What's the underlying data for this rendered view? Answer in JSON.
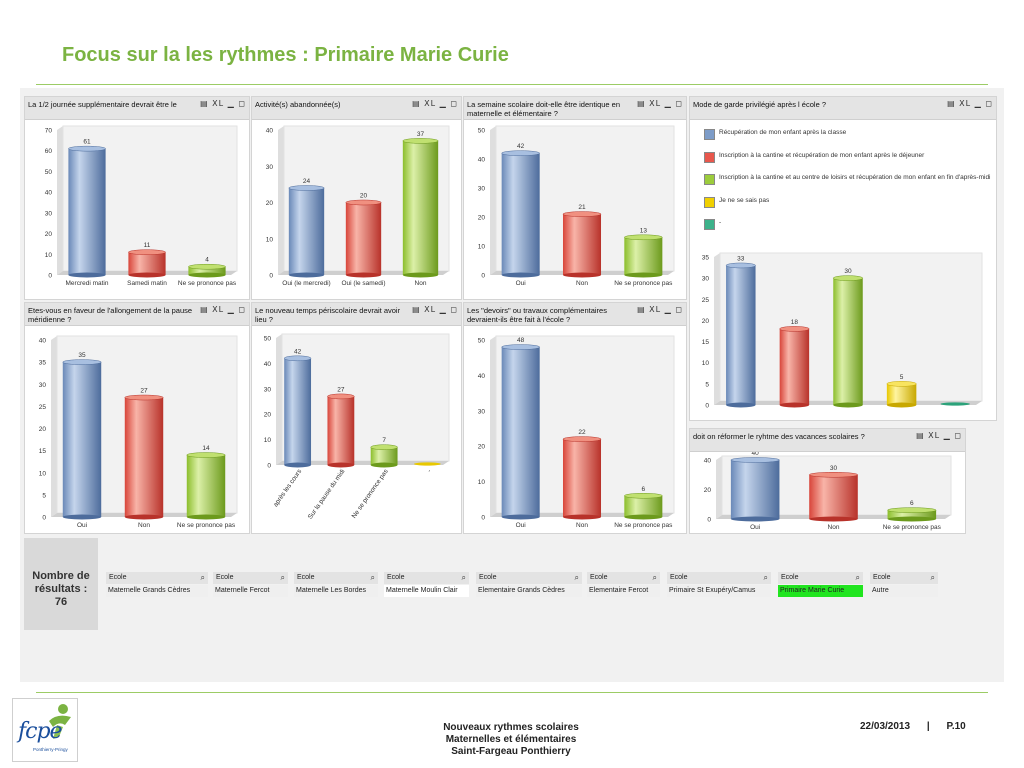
{
  "slide": {
    "title": "Focus sur la les rythmes : Primaire Marie Curie",
    "panel_icons": "▤ XL ▁ ◻",
    "result_count": "Nombre de résultats : 76",
    "listbox_search_icon": "magnifier-icon",
    "listboxes": [
      {
        "header": "Ecole",
        "value": "Maternelle Grands Cèdres"
      },
      {
        "header": "Ecole",
        "value": "Maternelle Fercot"
      },
      {
        "header": "Ecole",
        "value": "Maternelle Les Bordes"
      },
      {
        "header": "Ecole",
        "value": "Maternelle Moulin Clair"
      },
      {
        "header": "Ecole",
        "value": "Elementaire Grands Cèdres"
      },
      {
        "header": "Ecole",
        "value": "Elementaire Fercot"
      },
      {
        "header": "Ecole",
        "value": "Primaire St Exupéry/Camus"
      },
      {
        "header": "Ecole",
        "value": "Primaire Marie Curie",
        "selected": true
      },
      {
        "header": "Ecole",
        "value": "Autre"
      }
    ],
    "logo": {
      "name": "fcpe",
      "subtitle": "Ponthierry-Pringy"
    },
    "footer": {
      "line1": "Nouveaux rythmes scolaires",
      "line2": "Maternelles et élémentaires",
      "line3": "Saint-Fargeau Ponthierry",
      "date": "22/03/2013",
      "separator": "|",
      "page": "P.10"
    },
    "colors": {
      "blue": "#7d9cc8",
      "red": "#e8574c",
      "green": "#9ccc3c",
      "yellow": "#f0d000",
      "teal": "#3cb28a",
      "selected_green": "#21e51f",
      "title_green": "#7bb342"
    }
  },
  "chart_data": [
    {
      "type": "bar",
      "title": "La 1/2 journée supplémentaire devrait être le",
      "categories": [
        "Mercredi matin",
        "Samedi matin",
        "Ne se prononce pas"
      ],
      "values": [
        61,
        11,
        4
      ],
      "ylim": [
        0,
        70
      ],
      "yticks": [
        0,
        10,
        20,
        30,
        40,
        50,
        60,
        70
      ],
      "colors": [
        "blue",
        "red",
        "green"
      ]
    },
    {
      "type": "bar",
      "title": "Activité(s) abandonnée(s)",
      "categories": [
        "Oui (le mercredi)",
        "Oui (le samedi)",
        "Non"
      ],
      "values": [
        24,
        20,
        37
      ],
      "ylim": [
        0,
        40
      ],
      "yticks": [
        0,
        10,
        20,
        30,
        40
      ],
      "colors": [
        "blue",
        "red",
        "green"
      ]
    },
    {
      "type": "bar",
      "title": "La semaine scolaire doit-elle être identique en maternelle et élémentaire ?",
      "categories": [
        "Oui",
        "Non",
        "Ne se prononce pas"
      ],
      "values": [
        42,
        21,
        13
      ],
      "ylim": [
        0,
        50
      ],
      "yticks": [
        0,
        10,
        20,
        30,
        40,
        50
      ],
      "colors": [
        "blue",
        "red",
        "green"
      ]
    },
    {
      "type": "bar",
      "title": "Mode de garde privilégié après l école ?",
      "categories": [
        "Récupération de mon enfant après la classe",
        "Inscription à la cantine et récupération de mon enfant après le déjeuner",
        "Inscription à la cantine et au centre de loisirs et récupération de mon enfant en fin d'après-midi",
        "Je ne se sais pas",
        "-"
      ],
      "values": [
        33,
        18,
        30,
        5,
        0
      ],
      "ylim": [
        0,
        35
      ],
      "yticks": [
        0,
        5,
        10,
        15,
        20,
        25,
        30,
        35
      ],
      "colors": [
        "blue",
        "red",
        "green",
        "yellow",
        "teal"
      ],
      "legend": "top"
    },
    {
      "type": "bar",
      "title": "Etes-vous en faveur de l'allongement de la pause méridienne ?",
      "categories": [
        "Oui",
        "Non",
        "Ne se prononce pas"
      ],
      "values": [
        35,
        27,
        14
      ],
      "ylim": [
        0,
        40
      ],
      "yticks": [
        0,
        5,
        10,
        15,
        20,
        25,
        30,
        35,
        40
      ],
      "colors": [
        "blue",
        "red",
        "green"
      ]
    },
    {
      "type": "bar",
      "title": "Le nouveau temps périscolaire devrait avoir lieu ?",
      "categories": [
        "après les cours",
        "Sur la pause du midi",
        "Ne se prononce pas",
        "-"
      ],
      "values": [
        42,
        27,
        7,
        0
      ],
      "ylim": [
        0,
        50
      ],
      "yticks": [
        0,
        10,
        20,
        30,
        40,
        50
      ],
      "colors": [
        "blue",
        "red",
        "green",
        "yellow"
      ],
      "rotated_labels": true
    },
    {
      "type": "bar",
      "title": "Les \"devoirs\" ou travaux complémentaires devraient-ils être fait à l'école ?",
      "categories": [
        "Oui",
        "Non",
        "Ne se prononce pas"
      ],
      "values": [
        48,
        22,
        6
      ],
      "ylim": [
        0,
        50
      ],
      "yticks": [
        0,
        10,
        20,
        30,
        40,
        50
      ],
      "colors": [
        "blue",
        "red",
        "green"
      ]
    },
    {
      "type": "bar",
      "title": "doit on réformer le ryhtme des vacances scolaires ?",
      "categories": [
        "Oui",
        "Non",
        "Ne se prononce pas"
      ],
      "values": [
        40,
        30,
        6
      ],
      "ylim": [
        0,
        40
      ],
      "yticks": [
        0,
        20,
        40
      ],
      "colors": [
        "blue",
        "red",
        "green"
      ]
    }
  ]
}
